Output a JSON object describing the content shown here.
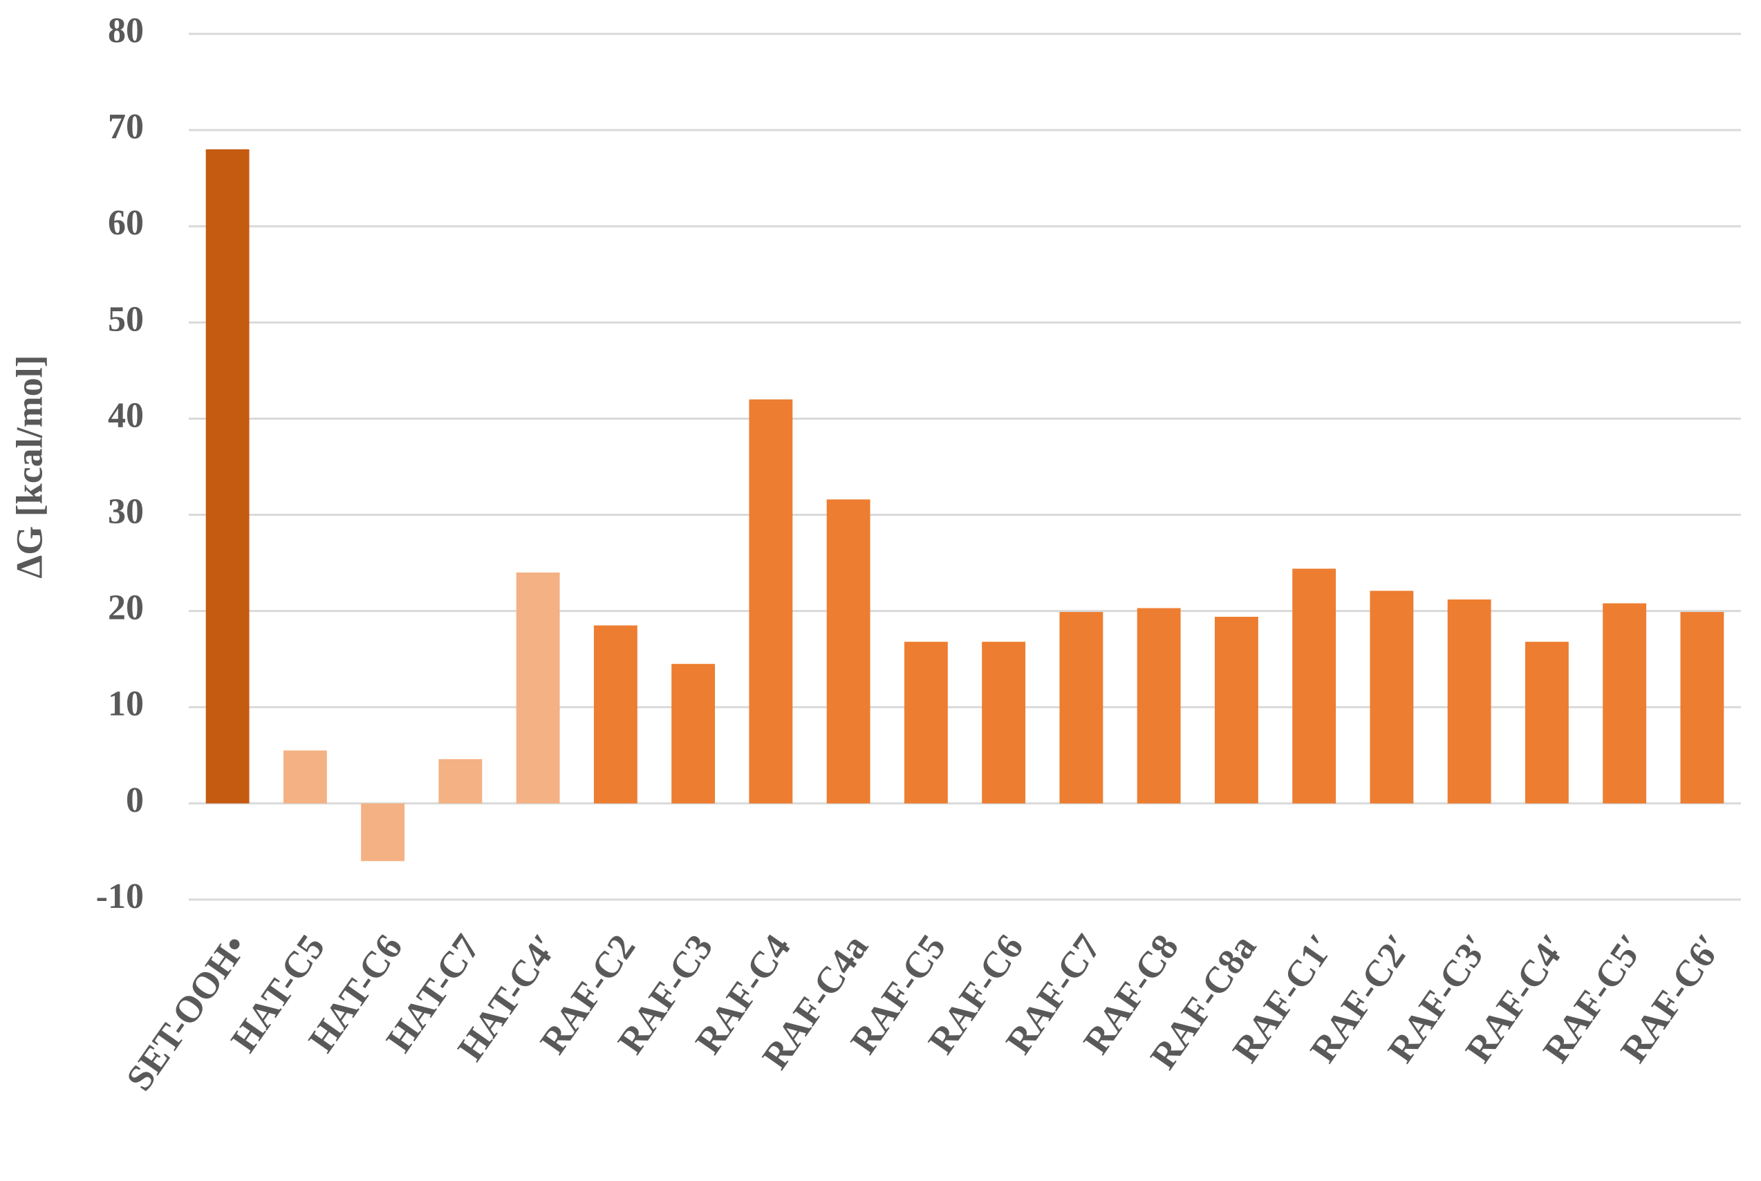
{
  "chart_data": {
    "type": "bar",
    "y_label": "ΔG [kcal/mol]",
    "categories": [
      "SET-OOH•",
      "HAT-C5",
      "HAT-C6",
      "HAT-C7",
      "HAT-C4′",
      "RAF-C2",
      "RAF-C3",
      "RAF-C4",
      "RAF-C4a",
      "RAF-C5",
      "RAF-C6",
      "RAF-C7",
      "RAF-C8",
      "RAF-C8a",
      "RAF-C1′",
      "RAF-C2′",
      "RAF-C3′",
      "RAF-C4′",
      "RAF-C5′",
      "RAF-C6′"
    ],
    "values": [
      68,
      5.5,
      -6,
      4.6,
      24,
      18.5,
      14.5,
      42,
      31.6,
      16.8,
      16.8,
      19.9,
      20.3,
      19.4,
      24.4,
      22.1,
      21.2,
      16.8,
      20.8,
      19.9
    ],
    "colors": [
      "#c55a11",
      "#f4b183",
      "#f4b183",
      "#f4b183",
      "#f4b183",
      "#ed7d31",
      "#ed7d31",
      "#ed7d31",
      "#ed7d31",
      "#ed7d31",
      "#ed7d31",
      "#ed7d31",
      "#ed7d31",
      "#ed7d31",
      "#ed7d31",
      "#ed7d31",
      "#ed7d31",
      "#ed7d31",
      "#ed7d31",
      "#ed7d31"
    ],
    "ylim": [
      -10,
      80
    ],
    "yticks": [
      -10,
      0,
      10,
      20,
      30,
      40,
      50,
      60,
      70,
      80
    ],
    "grid": true
  }
}
